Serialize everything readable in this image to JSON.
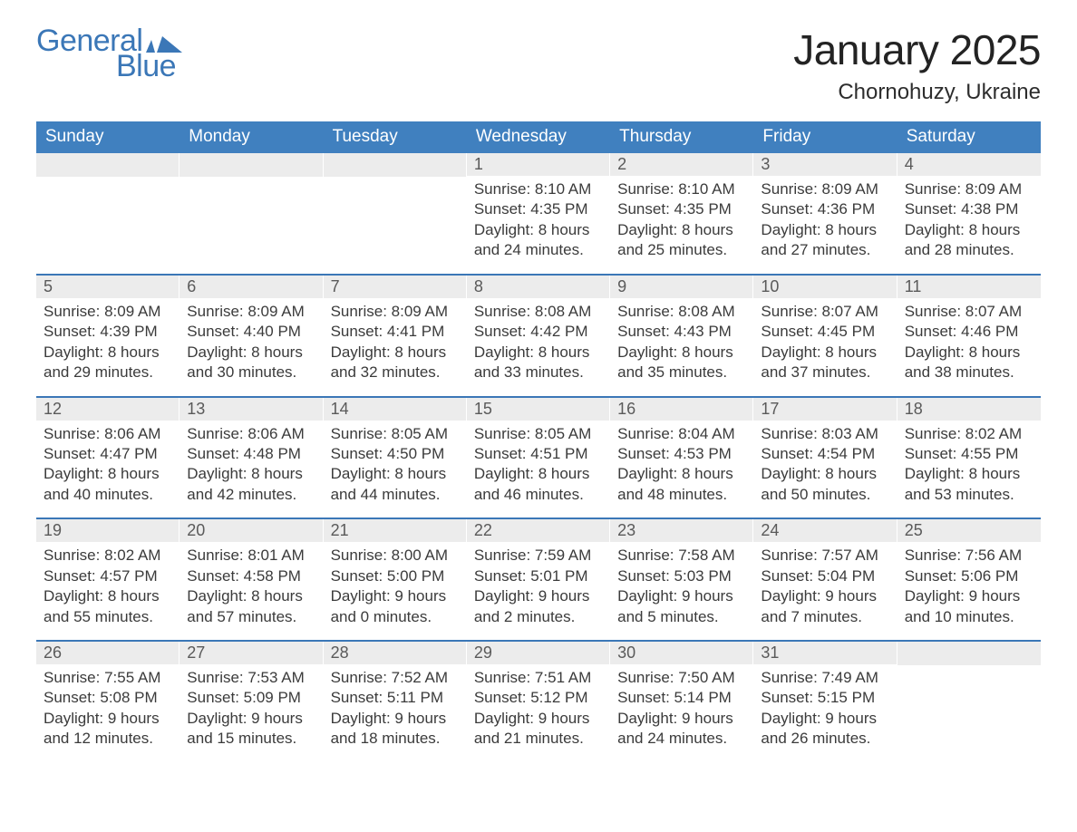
{
  "brand": {
    "line1": "General",
    "line2": "Blue",
    "color": "#3b77b7"
  },
  "header": {
    "month_title": "January 2025",
    "location": "Chornohuzy, Ukraine"
  },
  "colors": {
    "header_row_bg": "#4080bf",
    "header_row_text": "#ffffff",
    "daynum_bg": "#ececec",
    "row_divider": "#3b77b7",
    "page_bg": "#ffffff",
    "body_text": "#3b3b3b"
  },
  "weekdays": [
    "Sunday",
    "Monday",
    "Tuesday",
    "Wednesday",
    "Thursday",
    "Friday",
    "Saturday"
  ],
  "labels": {
    "sunrise": "Sunrise",
    "sunset": "Sunset",
    "daylight": "Daylight"
  },
  "weeks": [
    [
      null,
      null,
      null,
      {
        "n": 1,
        "sunrise": "8:10 AM",
        "sunset": "4:35 PM",
        "daylight": "8 hours and 24 minutes."
      },
      {
        "n": 2,
        "sunrise": "8:10 AM",
        "sunset": "4:35 PM",
        "daylight": "8 hours and 25 minutes."
      },
      {
        "n": 3,
        "sunrise": "8:09 AM",
        "sunset": "4:36 PM",
        "daylight": "8 hours and 27 minutes."
      },
      {
        "n": 4,
        "sunrise": "8:09 AM",
        "sunset": "4:38 PM",
        "daylight": "8 hours and 28 minutes."
      }
    ],
    [
      {
        "n": 5,
        "sunrise": "8:09 AM",
        "sunset": "4:39 PM",
        "daylight": "8 hours and 29 minutes."
      },
      {
        "n": 6,
        "sunrise": "8:09 AM",
        "sunset": "4:40 PM",
        "daylight": "8 hours and 30 minutes."
      },
      {
        "n": 7,
        "sunrise": "8:09 AM",
        "sunset": "4:41 PM",
        "daylight": "8 hours and 32 minutes."
      },
      {
        "n": 8,
        "sunrise": "8:08 AM",
        "sunset": "4:42 PM",
        "daylight": "8 hours and 33 minutes."
      },
      {
        "n": 9,
        "sunrise": "8:08 AM",
        "sunset": "4:43 PM",
        "daylight": "8 hours and 35 minutes."
      },
      {
        "n": 10,
        "sunrise": "8:07 AM",
        "sunset": "4:45 PM",
        "daylight": "8 hours and 37 minutes."
      },
      {
        "n": 11,
        "sunrise": "8:07 AM",
        "sunset": "4:46 PM",
        "daylight": "8 hours and 38 minutes."
      }
    ],
    [
      {
        "n": 12,
        "sunrise": "8:06 AM",
        "sunset": "4:47 PM",
        "daylight": "8 hours and 40 minutes."
      },
      {
        "n": 13,
        "sunrise": "8:06 AM",
        "sunset": "4:48 PM",
        "daylight": "8 hours and 42 minutes."
      },
      {
        "n": 14,
        "sunrise": "8:05 AM",
        "sunset": "4:50 PM",
        "daylight": "8 hours and 44 minutes."
      },
      {
        "n": 15,
        "sunrise": "8:05 AM",
        "sunset": "4:51 PM",
        "daylight": "8 hours and 46 minutes."
      },
      {
        "n": 16,
        "sunrise": "8:04 AM",
        "sunset": "4:53 PM",
        "daylight": "8 hours and 48 minutes."
      },
      {
        "n": 17,
        "sunrise": "8:03 AM",
        "sunset": "4:54 PM",
        "daylight": "8 hours and 50 minutes."
      },
      {
        "n": 18,
        "sunrise": "8:02 AM",
        "sunset": "4:55 PM",
        "daylight": "8 hours and 53 minutes."
      }
    ],
    [
      {
        "n": 19,
        "sunrise": "8:02 AM",
        "sunset": "4:57 PM",
        "daylight": "8 hours and 55 minutes."
      },
      {
        "n": 20,
        "sunrise": "8:01 AM",
        "sunset": "4:58 PM",
        "daylight": "8 hours and 57 minutes."
      },
      {
        "n": 21,
        "sunrise": "8:00 AM",
        "sunset": "5:00 PM",
        "daylight": "9 hours and 0 minutes."
      },
      {
        "n": 22,
        "sunrise": "7:59 AM",
        "sunset": "5:01 PM",
        "daylight": "9 hours and 2 minutes."
      },
      {
        "n": 23,
        "sunrise": "7:58 AM",
        "sunset": "5:03 PM",
        "daylight": "9 hours and 5 minutes."
      },
      {
        "n": 24,
        "sunrise": "7:57 AM",
        "sunset": "5:04 PM",
        "daylight": "9 hours and 7 minutes."
      },
      {
        "n": 25,
        "sunrise": "7:56 AM",
        "sunset": "5:06 PM",
        "daylight": "9 hours and 10 minutes."
      }
    ],
    [
      {
        "n": 26,
        "sunrise": "7:55 AM",
        "sunset": "5:08 PM",
        "daylight": "9 hours and 12 minutes."
      },
      {
        "n": 27,
        "sunrise": "7:53 AM",
        "sunset": "5:09 PM",
        "daylight": "9 hours and 15 minutes."
      },
      {
        "n": 28,
        "sunrise": "7:52 AM",
        "sunset": "5:11 PM",
        "daylight": "9 hours and 18 minutes."
      },
      {
        "n": 29,
        "sunrise": "7:51 AM",
        "sunset": "5:12 PM",
        "daylight": "9 hours and 21 minutes."
      },
      {
        "n": 30,
        "sunrise": "7:50 AM",
        "sunset": "5:14 PM",
        "daylight": "9 hours and 24 minutes."
      },
      {
        "n": 31,
        "sunrise": "7:49 AM",
        "sunset": "5:15 PM",
        "daylight": "9 hours and 26 minutes."
      },
      null
    ]
  ]
}
